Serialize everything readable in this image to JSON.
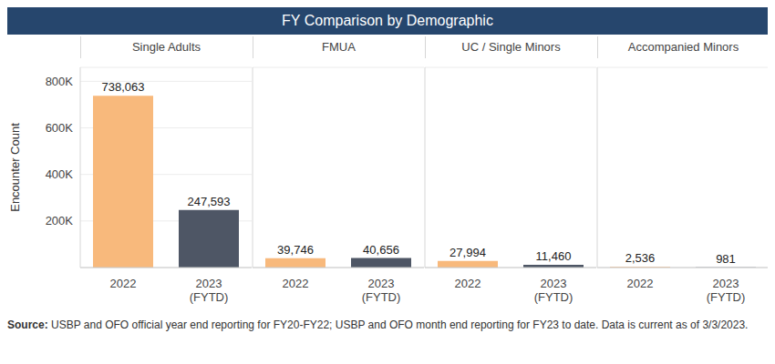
{
  "title": "FY Comparison by Demographic",
  "source_label": "Source:",
  "source": "USBP and OFO official year end reporting for FY20-FY22; USBP and OFO month end reporting for FY23 to date. Data is current as of 3/3/2023.",
  "chart_data": [
    {
      "type": "bar",
      "title": "Single Adults",
      "y_label": "Encounter Count",
      "categories": [
        "2022",
        "2023 (FYTD)"
      ],
      "values": [
        738063,
        247593
      ],
      "value_labels": [
        "738,063",
        "247,593"
      ],
      "colors": [
        "#f8b97c",
        "#4e5665"
      ],
      "ylim": [
        0,
        860000
      ],
      "yticks": [
        {
          "value": 200000,
          "label": "200K"
        },
        {
          "value": 400000,
          "label": "400K"
        },
        {
          "value": 600000,
          "label": "600K"
        },
        {
          "value": 800000,
          "label": "800K"
        }
      ],
      "grid": true,
      "data_labels": true
    },
    {
      "type": "bar",
      "title": "FMUA",
      "categories": [
        "2022",
        "2023 (FYTD)"
      ],
      "values": [
        39746,
        40656
      ],
      "value_labels": [
        "39,746",
        "40,656"
      ],
      "colors": [
        "#f8b97c",
        "#4e5665"
      ],
      "ylim": [
        0,
        860000
      ],
      "yticks": [
        {
          "value": 200000,
          "label": "200K"
        },
        {
          "value": 400000,
          "label": "400K"
        },
        {
          "value": 600000,
          "label": "600K"
        },
        {
          "value": 800000,
          "label": "800K"
        }
      ],
      "grid": true,
      "data_labels": true,
      "tick_labels": "x"
    },
    {
      "type": "bar",
      "title": "UC / Single Minors",
      "categories": [
        "2022",
        "2023 (FYTD)"
      ],
      "values": [
        27994,
        11460
      ],
      "value_labels": [
        "27,994",
        "11,460"
      ],
      "colors": [
        "#f8b97c",
        "#4e5665"
      ],
      "ylim": [
        0,
        860000
      ],
      "yticks": [
        {
          "value": 200000,
          "label": "200K"
        },
        {
          "value": 400000,
          "label": "400K"
        },
        {
          "value": 600000,
          "label": "600K"
        },
        {
          "value": 800000,
          "label": "800K"
        }
      ],
      "grid": true,
      "data_labels": true,
      "tick_labels": "x"
    },
    {
      "type": "bar",
      "title": "Accompanied Minors",
      "categories": [
        "2022",
        "2023 (FYTD)"
      ],
      "values": [
        2536,
        981
      ],
      "value_labels": [
        "2,536",
        "981"
      ],
      "colors": [
        "#f8b97c",
        "#4e5665"
      ],
      "ylim": [
        0,
        860000
      ],
      "yticks": [
        {
          "value": 200000,
          "label": "200K"
        },
        {
          "value": 400000,
          "label": "400K"
        },
        {
          "value": 600000,
          "label": "600K"
        },
        {
          "value": 800000,
          "label": "800K"
        }
      ],
      "grid": true,
      "data_labels": true,
      "tick_labels": "x"
    }
  ]
}
